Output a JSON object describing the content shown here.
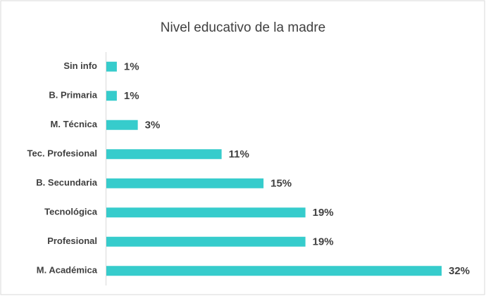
{
  "chart_data": {
    "type": "bar",
    "orientation": "horizontal",
    "title": "Nivel educativo de la madre",
    "categories": [
      "Sin info",
      "B. Primaria",
      "M. Técnica",
      "Tec. Profesional",
      "B. Secundaria",
      "Tecnológica",
      "Profesional",
      "M. Académica"
    ],
    "values": [
      1,
      1,
      3,
      11,
      15,
      19,
      19,
      32
    ],
    "value_labels": [
      "1%",
      "1%",
      "3%",
      "11%",
      "15%",
      "19%",
      "19%",
      "32%"
    ],
    "color": "#36cccc"
  }
}
